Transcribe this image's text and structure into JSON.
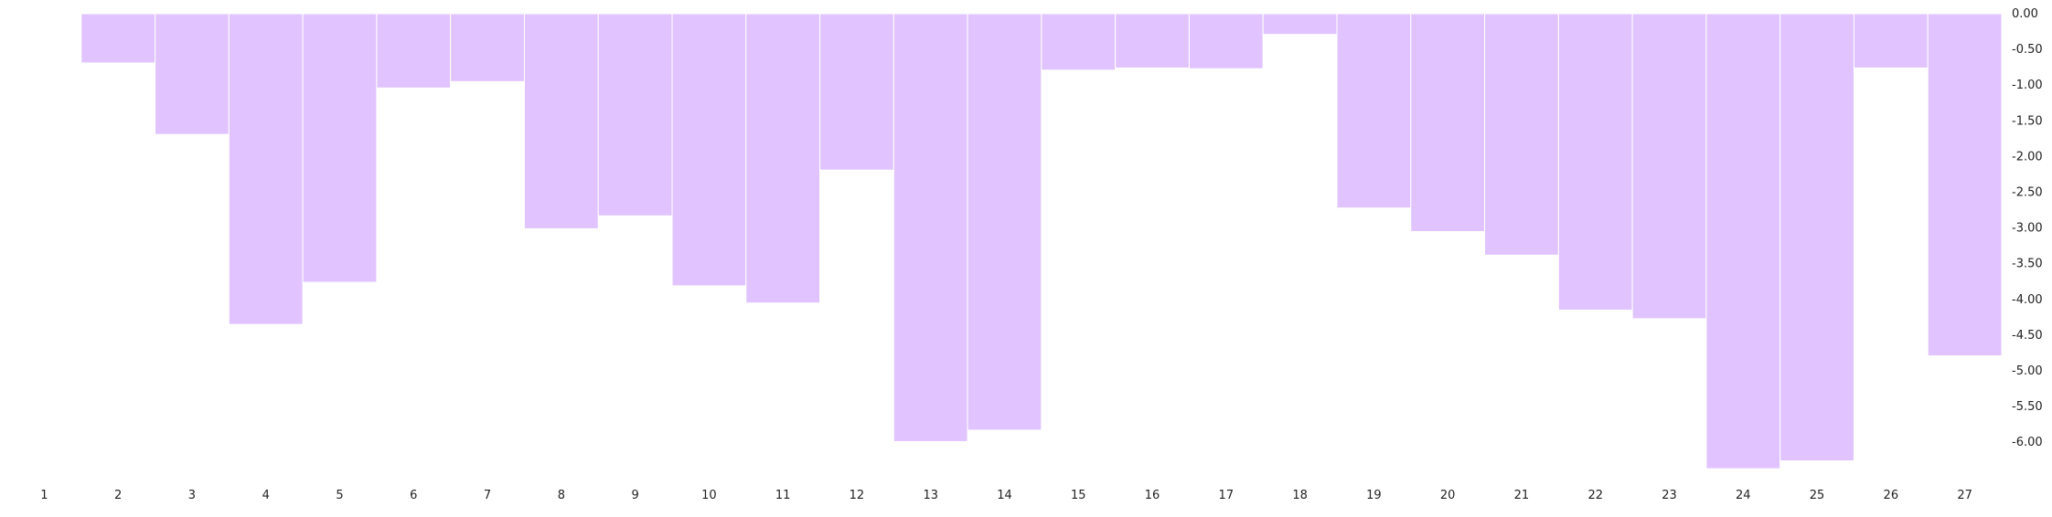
{
  "chart_data": {
    "type": "bar",
    "title": "",
    "xlabel": "",
    "ylabel": "",
    "categories": [
      "1",
      "2",
      "3",
      "4",
      "5",
      "6",
      "7",
      "8",
      "9",
      "10",
      "11",
      "12",
      "13",
      "14",
      "15",
      "16",
      "17",
      "18",
      "19",
      "20",
      "21",
      "22",
      "23",
      "24",
      "25",
      "26",
      "27"
    ],
    "series": [
      {
        "values": [
          0,
          -0.69,
          -1.69,
          -4.35,
          -3.76,
          -1.04,
          -0.95,
          -3.01,
          -2.83,
          -3.81,
          -4.05,
          -2.19,
          -5.99,
          -5.83,
          -0.79,
          -0.76,
          -0.77,
          -0.29,
          -2.72,
          -3.05,
          -3.38,
          -4.15,
          -4.27,
          -6.37,
          -6.26,
          -0.76,
          -4.79
        ]
      }
    ],
    "ylim": [
      -6.37,
      0
    ],
    "y_ticks": [
      "0.00",
      "-0.50",
      "-1.00",
      "-1.50",
      "-2.00",
      "-2.50",
      "-3.00",
      "-3.50",
      "-4.00",
      "-4.50",
      "-5.00",
      "-5.50",
      "-6.00"
    ],
    "y_tick_values": [
      0,
      -0.5,
      -1.0,
      -1.5,
      -2.0,
      -2.5,
      -3.0,
      -3.5,
      -4.0,
      -4.5,
      -5.0,
      -5.5,
      -6.0
    ],
    "y_axis_position": "right",
    "grid": false,
    "legend": "none",
    "bar_color": "#e1c4ff",
    "bar_border_color": "#ffffff",
    "text_color": "#222222"
  }
}
